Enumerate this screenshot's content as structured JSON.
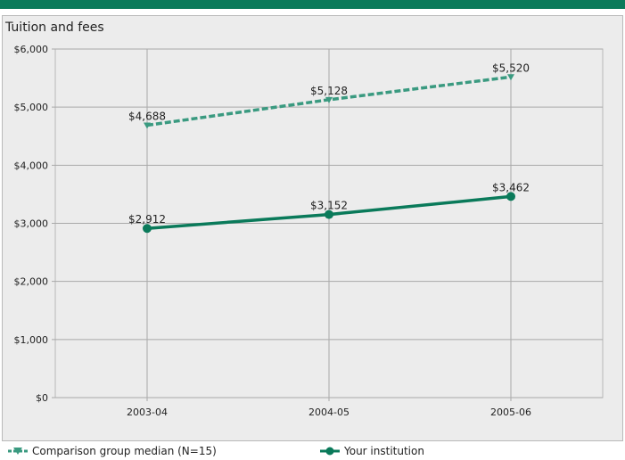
{
  "header": {
    "title": "Tuition and fees"
  },
  "chart_data": {
    "type": "line",
    "title": "Tuition and fees",
    "categories": [
      "2003-04",
      "2004-05",
      "2005-06"
    ],
    "yticks": [
      "$0",
      "$1,000",
      "$2,000",
      "$3,000",
      "$4,000",
      "$5,000",
      "$6,000"
    ],
    "ylim": [
      0,
      6000
    ],
    "grid": true,
    "legend_position": "bottom",
    "series": [
      {
        "name": "Comparison group median (N=15)",
        "values": [
          4688,
          5128,
          5520
        ],
        "labels": [
          "$4,688",
          "$5,128",
          "$5,520"
        ],
        "color": "#3a9a80",
        "style": "dashed"
      },
      {
        "name": "Your institution",
        "values": [
          2912,
          3152,
          3462
        ],
        "labels": [
          "$2,912",
          "$3,152",
          "$3,462"
        ],
        "color": "#0a7a5a",
        "style": "solid"
      }
    ]
  },
  "legend": {
    "items": [
      {
        "label": "Comparison group median (N=15)",
        "icon": "dashed-line-triangle-icon"
      },
      {
        "label": "Your institution",
        "icon": "solid-line-dot-icon"
      }
    ]
  }
}
